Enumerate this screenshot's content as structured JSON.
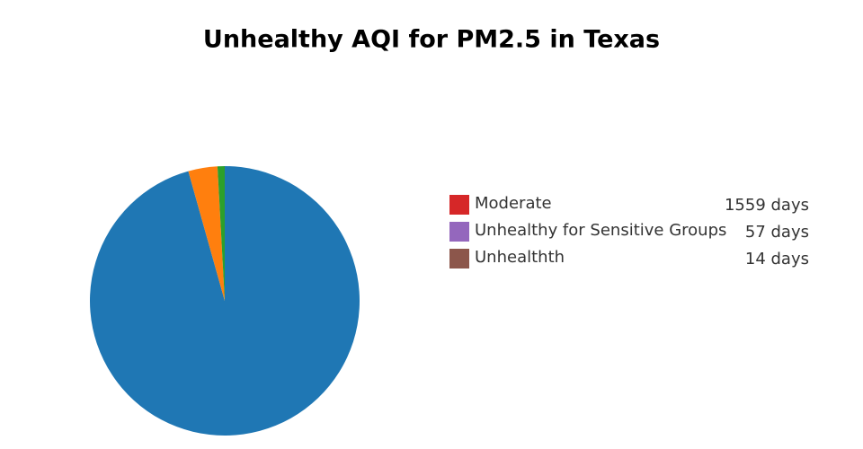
{
  "chart_data": {
    "type": "pie",
    "title": "Unhealthy AQI for PM2.5 in Texas",
    "categories": [
      "Moderate",
      "Unhealthy for Sensitive Groups",
      "Unhealthth"
    ],
    "values": [
      1559,
      57,
      14
    ],
    "value_labels": [
      "1559 days",
      "57 days",
      "14 days"
    ],
    "colors": [
      "#1f77b4",
      "#ff7f0e",
      "#2ca02c"
    ],
    "legend_colors": [
      "#d62728",
      "#9467bd",
      "#8c564b"
    ]
  }
}
